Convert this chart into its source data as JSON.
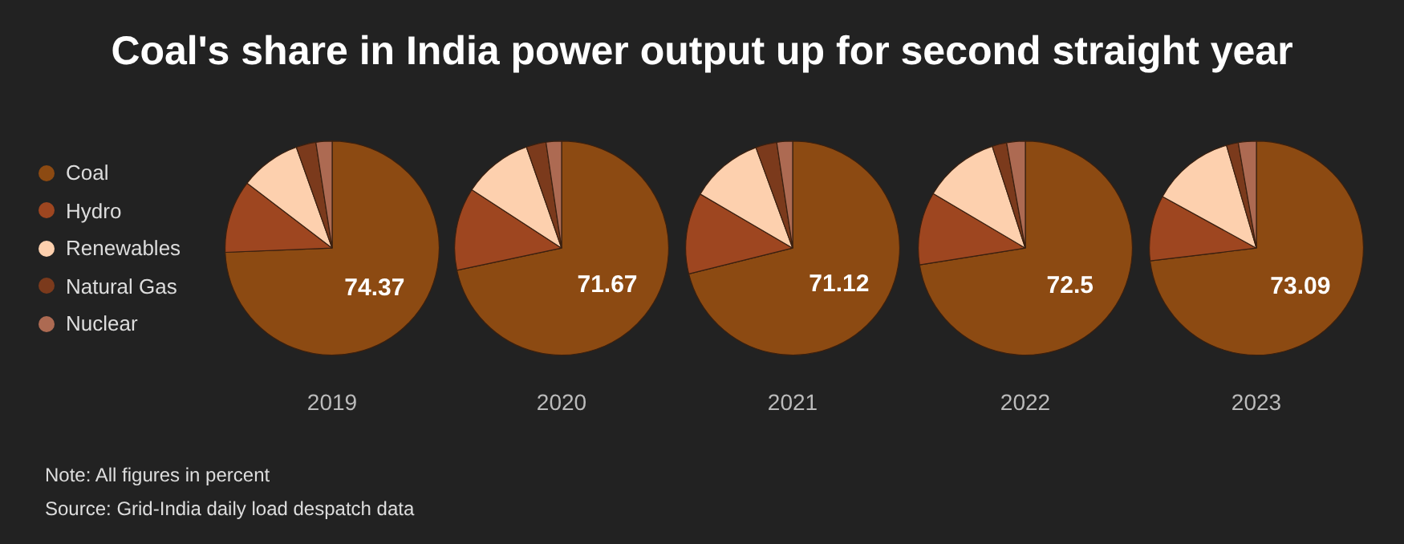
{
  "chart_data": {
    "type": "pie",
    "title": "Coal's share in India power output up for second straight year",
    "legend": "left",
    "categories": [
      "Coal",
      "Hydro",
      "Renewables",
      "Natural Gas",
      "Nuclear"
    ],
    "colors": [
      "#8c4a12",
      "#9e4620",
      "#fdd0ae",
      "#7b3a1c",
      "#ad6a52"
    ],
    "series": [
      {
        "name": "2019",
        "values": [
          74.37,
          11.0,
          9.2,
          3.0,
          2.43
        ],
        "value_labels": [
          "74.37",
          null,
          null,
          null,
          null
        ]
      },
      {
        "name": "2020",
        "values": [
          71.67,
          12.5,
          10.5,
          3.0,
          2.33
        ],
        "value_labels": [
          "71.67",
          null,
          null,
          null,
          null
        ]
      },
      {
        "name": "2021",
        "values": [
          71.12,
          12.3,
          11.0,
          3.2,
          2.38
        ],
        "value_labels": [
          "71.12",
          null,
          null,
          null,
          null
        ]
      },
      {
        "name": "2022",
        "values": [
          72.5,
          11.0,
          11.5,
          2.2,
          2.8
        ],
        "value_labels": [
          "72.5",
          null,
          null,
          null,
          null
        ]
      },
      {
        "name": "2023",
        "values": [
          73.09,
          9.9,
          12.5,
          1.8,
          2.71
        ],
        "value_labels": [
          "73.09",
          null,
          null,
          null,
          null
        ]
      }
    ],
    "annotations": [
      "Note: All figures in percent",
      "Source: Grid-India daily load despatch data"
    ]
  }
}
